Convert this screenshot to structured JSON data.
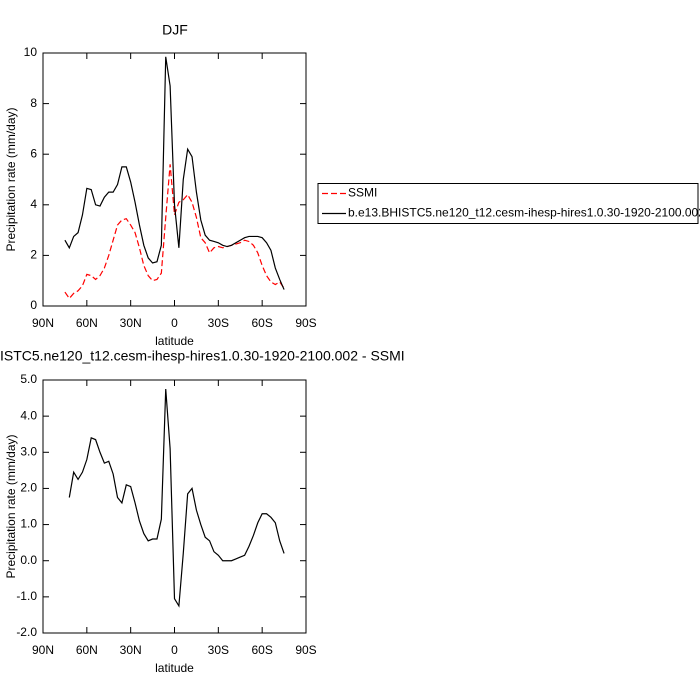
{
  "chart_data": [
    {
      "type": "line",
      "title": "DJF",
      "xlabel": "latitude",
      "ylabel": "Precipitation rate (mm/day)",
      "x": [
        75,
        72,
        69,
        66,
        63,
        60,
        57,
        54,
        51,
        48,
        45,
        42,
        39,
        36,
        33,
        30,
        27,
        24,
        21,
        18,
        15,
        12,
        9,
        6,
        3,
        0,
        -3,
        -6,
        -9,
        -12,
        -15,
        -18,
        -21,
        -24,
        -27,
        -30,
        -33,
        -36,
        -39,
        -42,
        -45,
        -48,
        -51,
        -54,
        -57,
        -60,
        -63,
        -66,
        -69,
        -72,
        -75
      ],
      "series": [
        {
          "name": "SSMI",
          "color": "#ff0000",
          "style": "dashed",
          "values": [
            0.55,
            0.3,
            0.5,
            0.6,
            0.8,
            1.25,
            1.2,
            1.05,
            1.2,
            1.5,
            2.0,
            2.6,
            3.2,
            3.4,
            3.45,
            3.2,
            2.9,
            2.3,
            1.6,
            1.2,
            1.0,
            1.05,
            1.3,
            3.5,
            5.6,
            3.6,
            4.1,
            4.2,
            4.4,
            4.1,
            3.5,
            2.7,
            2.5,
            2.1,
            2.3,
            2.35,
            2.3,
            2.35,
            2.4,
            2.45,
            2.5,
            2.6,
            2.55,
            2.4,
            2.1,
            1.6,
            1.2,
            0.95,
            0.85,
            0.95,
            0.7
          ]
        },
        {
          "name": "b.e13.BHISTC5.ne120_t12.cesm-ihesp-hires1.0.30-1920-2100.002",
          "color": "#000000",
          "style": "solid",
          "values": [
            2.6,
            2.3,
            2.75,
            2.9,
            3.6,
            4.65,
            4.6,
            4.0,
            3.95,
            4.3,
            4.5,
            4.5,
            4.8,
            5.5,
            5.5,
            4.9,
            4.1,
            3.2,
            2.4,
            1.9,
            1.7,
            1.75,
            2.4,
            9.85,
            8.7,
            4.0,
            2.3,
            5.0,
            6.2,
            5.9,
            4.5,
            3.4,
            2.8,
            2.6,
            2.55,
            2.5,
            2.4,
            2.35,
            2.4,
            2.5,
            2.6,
            2.7,
            2.75,
            2.75,
            2.75,
            2.7,
            2.5,
            2.2,
            1.5,
            1.05,
            0.65
          ]
        }
      ],
      "xlim": [
        90,
        -90
      ],
      "xticks": [
        {
          "value": 90,
          "label": "90N"
        },
        {
          "value": 60,
          "label": "60N"
        },
        {
          "value": 30,
          "label": "30N"
        },
        0,
        {
          "value": -30,
          "label": "30S"
        },
        {
          "value": -60,
          "label": "60S"
        },
        {
          "value": -90,
          "label": "90S"
        }
      ],
      "ylim": [
        0,
        10
      ],
      "yticks": [
        0,
        2,
        4,
        6,
        8,
        10
      ],
      "legend": "right"
    },
    {
      "type": "line",
      "title": "ISTC5.ne120_t12.cesm-ihesp-hires1.0.30-1920-2100.002 - SSMI",
      "xlabel": "latitude",
      "ylabel": "Precipitation rate (mm/day)",
      "x": [
        72,
        69,
        66,
        63,
        60,
        57,
        54,
        51,
        48,
        45,
        42,
        39,
        36,
        33,
        30,
        27,
        24,
        21,
        18,
        15,
        12,
        9,
        6,
        3,
        0,
        -3,
        -6,
        -9,
        -12,
        -15,
        -18,
        -21,
        -24,
        -27,
        -30,
        -33,
        -36,
        -39,
        -42,
        -45,
        -48,
        -51,
        -54,
        -57,
        -60,
        -63,
        -66,
        -69,
        -72,
        -75
      ],
      "series": [
        {
          "color": "#000000",
          "style": "solid",
          "values": [
            1.75,
            2.45,
            2.25,
            2.45,
            2.8,
            3.4,
            3.35,
            3.0,
            2.7,
            2.75,
            2.4,
            1.75,
            1.6,
            2.1,
            2.05,
            1.6,
            1.1,
            0.75,
            0.55,
            0.6,
            0.6,
            1.15,
            4.75,
            3.1,
            -1.05,
            -1.25,
            0.2,
            1.85,
            2.0,
            1.4,
            1.0,
            0.65,
            0.55,
            0.25,
            0.15,
            0.0,
            0.0,
            0.0,
            0.05,
            0.1,
            0.15,
            0.4,
            0.7,
            1.05,
            1.3,
            1.3,
            1.2,
            1.05,
            0.55,
            0.2
          ]
        }
      ],
      "xlim": [
        90,
        -90
      ],
      "xticks": [
        {
          "value": 90,
          "label": "90N"
        },
        {
          "value": 60,
          "label": "60N"
        },
        {
          "value": 30,
          "label": "30N"
        },
        0,
        {
          "value": -30,
          "label": "30S"
        },
        {
          "value": -60,
          "label": "60S"
        },
        {
          "value": -90,
          "label": "90S"
        }
      ],
      "ylim": [
        -2,
        5
      ],
      "yticks": [
        {
          "value": -2,
          "label": "-2.0"
        },
        {
          "value": -1,
          "label": "-1.0"
        },
        {
          "value": 0,
          "label": "0.0"
        },
        {
          "value": 1,
          "label": "1.0"
        },
        {
          "value": 2,
          "label": "2.0"
        },
        {
          "value": 3,
          "label": "3.0"
        },
        {
          "value": 4,
          "label": "4.0"
        },
        {
          "value": 5,
          "label": "5.0"
        }
      ]
    }
  ]
}
